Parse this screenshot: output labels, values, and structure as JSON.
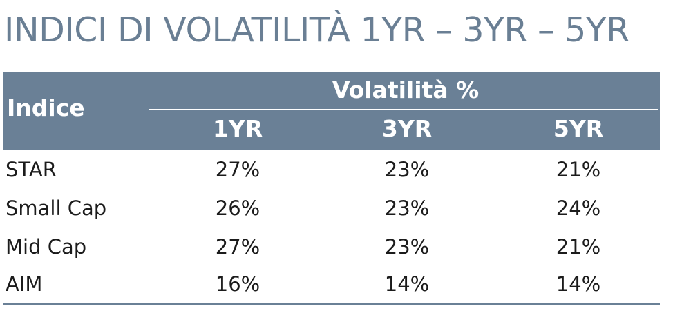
{
  "title": "INDICI DI VOLATILITÀ 1YR – 3YR – 5YR",
  "table": {
    "index_header": "Indice",
    "group_header": "Volatilità %",
    "columns": [
      "1YR",
      "3YR",
      "5YR"
    ],
    "rows": [
      {
        "name": "STAR",
        "values": [
          "27%",
          "23%",
          "21%"
        ]
      },
      {
        "name": "Small Cap",
        "values": [
          "26%",
          "23%",
          "24%"
        ]
      },
      {
        "name": "Mid Cap",
        "values": [
          "27%",
          "23%",
          "21%"
        ]
      },
      {
        "name": "AIM",
        "values": [
          "16%",
          "14%",
          "14%"
        ]
      }
    ]
  },
  "colors": {
    "header_bg": "#6a8096",
    "title": "#6a7f94",
    "text": "#1b1b1b"
  }
}
